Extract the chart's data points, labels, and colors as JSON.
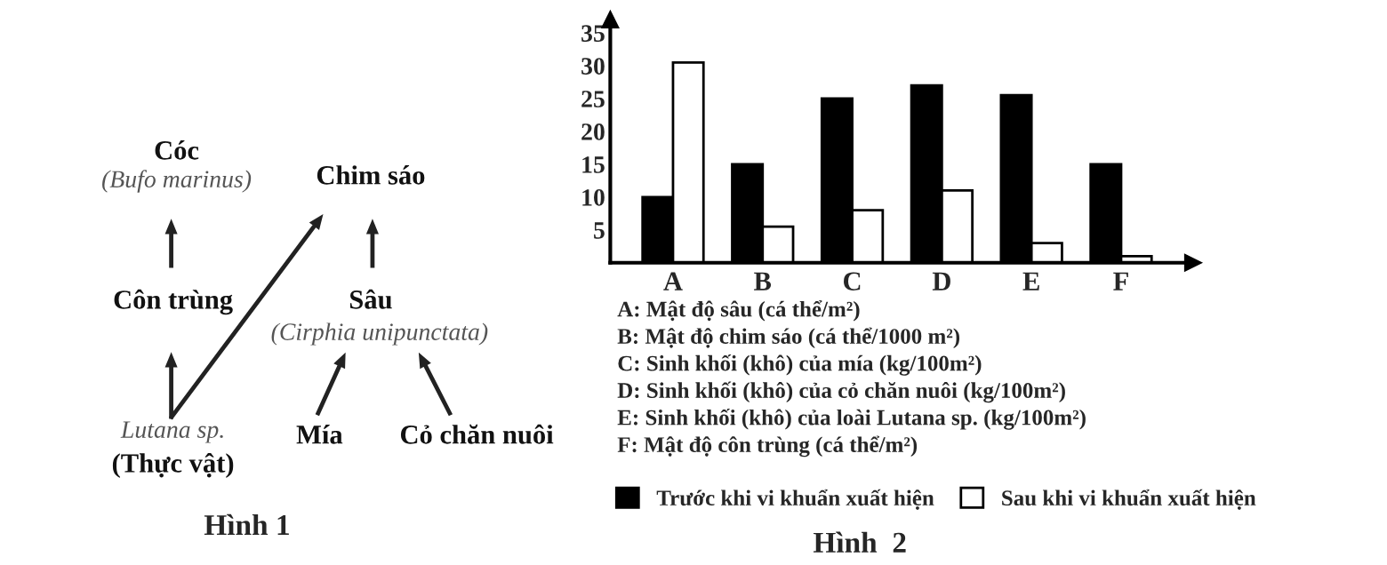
{
  "chart_data": [
    {
      "type": "other",
      "title": "Hình 1",
      "annotations": [
        "Cóc",
        "(Bufo marinus)",
        "Chim sáo",
        "Côn trùng",
        "Sâu",
        "(Cirphia unipunctata)",
        "Lutana sp.",
        "(Thực vật)",
        "Mía",
        "Cỏ chăn nuôi"
      ]
    },
    {
      "type": "bar",
      "title": "Hình  2",
      "categories": [
        "A",
        "B",
        "C",
        "D",
        "E",
        "F"
      ],
      "series": [
        {
          "name": "Trước khi vi khuẩn xuất hiện",
          "color": "#000000",
          "values": [
            10,
            15,
            25,
            27,
            25.5,
            15
          ]
        },
        {
          "name": "Sau khi vi khuẩn xuất hiện",
          "color": "#ffffff",
          "values": [
            30.5,
            5.5,
            8,
            11,
            3,
            1
          ]
        }
      ],
      "ylim": [
        0,
        37
      ],
      "yticks": [
        5,
        10,
        15,
        20,
        25,
        30,
        35
      ],
      "grid": false,
      "legend": "bottom",
      "annotations": [
        "A: Mật độ sâu (cá thể/m²)",
        "B: Mật độ chim sáo (cá thể/1000 m²)",
        "C: Sinh khối (khô) của mía (kg/100m²)",
        "D: Sinh khối (khô) của cỏ chăn nuôi (kg/100m²)",
        "E: Sinh khối (khô) của loài Lutana sp. (kg/100m²)",
        "F: Mật độ côn trùng (cá thể/m²)"
      ]
    }
  ]
}
